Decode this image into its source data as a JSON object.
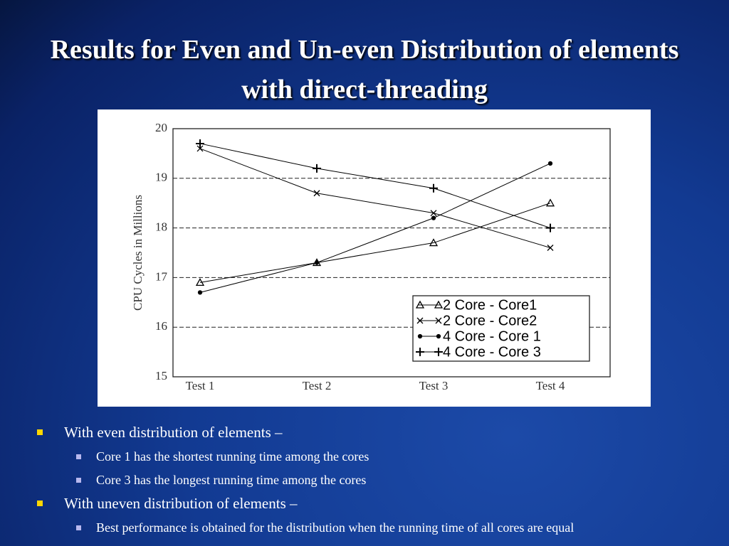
{
  "title": "Results for Even and Un-even Distribution of elements with direct-threading",
  "chart_data": {
    "type": "line",
    "y_label": "CPU Cycles in Millions",
    "categories": [
      "Test 1",
      "Test 2",
      "Test 3",
      "Test 4"
    ],
    "series": [
      {
        "name": "2 Core - Core1",
        "color": "#000000",
        "marker": "triangle",
        "values": [
          16.9,
          17.3,
          17.7,
          18.5
        ]
      },
      {
        "name": "2 Core - Core2",
        "color": "#000000",
        "marker": "x",
        "values": [
          19.6,
          18.7,
          18.3,
          17.6
        ]
      },
      {
        "name": "4 Core - Core 1",
        "color": "#000000",
        "marker": "dot",
        "values": [
          16.7,
          17.3,
          18.2,
          19.3
        ]
      },
      {
        "name": "4 Core - Core 3",
        "color": "#000000",
        "marker": "plus",
        "values": [
          19.7,
          19.2,
          18.8,
          18.0
        ]
      }
    ],
    "ylim": [
      15,
      20
    ],
    "yticks": [
      15,
      16,
      17,
      18,
      19,
      20
    ],
    "grid": true,
    "legend": "lower right"
  },
  "bullets": [
    {
      "text": "With even distribution of elements –",
      "children": [
        "Core 1 has the shortest running time among the cores",
        "Core 3 has the longest running time among the cores"
      ]
    },
    {
      "text": "With uneven distribution of elements –",
      "children": [
        "Best performance is obtained for the distribution when the running time of all cores are equal"
      ]
    }
  ]
}
